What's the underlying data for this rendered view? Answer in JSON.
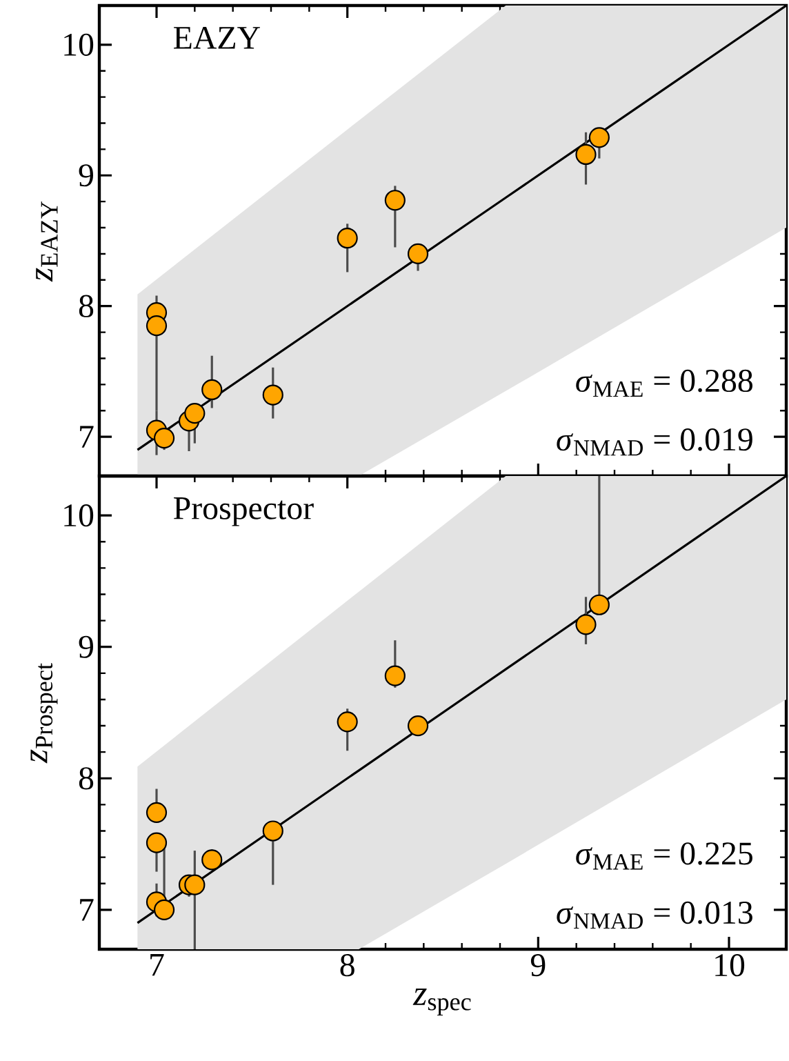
{
  "chart_data": [
    {
      "type": "scatter",
      "title": "EAZY",
      "ylabel": "*z*$_{EAZY}$",
      "xlim": [
        6.7,
        10.3
      ],
      "ylim": [
        6.7,
        10.3
      ],
      "xticks": [
        7,
        8,
        9,
        10
      ],
      "yticks": [
        7,
        8,
        9,
        10
      ],
      "tick_labels": "y",
      "annotations": [
        "*σ*$_{MAE}$ = 0.288",
        "*σ*$_{NMAD}$ = 0.019"
      ],
      "series": [
        {
          "type": "line",
          "color": "#000000",
          "x": [
            6.9,
            8.06,
            8.83,
            10.3
          ],
          "values": [
            6.9,
            8.06,
            8.83,
            10.3
          ],
          "lower": [
            6.7,
            6.7,
            7.35,
            8.6
          ],
          "upper": [
            8.09,
            9.42,
            10.3,
            10.3
          ]
        },
        {
          "marker": "circle",
          "color": "#ffa500",
          "x": [
            7.0,
            7.0,
            7.0,
            7.04,
            7.17,
            7.2,
            7.29,
            7.61,
            8.0,
            8.25,
            8.37,
            9.25,
            9.32
          ],
          "values": [
            7.95,
            7.85,
            7.05,
            6.99,
            7.12,
            7.18,
            7.36,
            7.32,
            8.52,
            8.81,
            8.4,
            9.16,
            9.29
          ],
          "errors": [
            [
              7.95,
              8.08
            ],
            [
              7.2,
              7.85
            ],
            [
              6.86,
              7.2
            ],
            [
              6.9,
              7.05
            ],
            [
              6.89,
              7.2
            ],
            [
              6.95,
              7.25
            ],
            [
              7.22,
              7.62
            ],
            [
              7.14,
              7.53
            ],
            [
              8.26,
              8.63
            ],
            [
              8.45,
              8.92
            ],
            [
              8.27,
              8.47
            ],
            [
              8.93,
              9.33
            ],
            [
              9.13,
              9.33
            ]
          ]
        }
      ]
    },
    {
      "type": "scatter",
      "title": "Prospector",
      "xlabel": "*z*$_{spec}$",
      "ylabel": "*z*$_{Prospect}$",
      "xlim": [
        6.7,
        10.3
      ],
      "ylim": [
        6.7,
        10.3
      ],
      "xticks": [
        7,
        8,
        9,
        10
      ],
      "yticks": [
        7,
        8,
        9,
        10
      ],
      "annotations": [
        "*σ*$_{MAE}$ = 0.225",
        "*σ*$_{NMAD}$ = 0.013"
      ],
      "series": [
        {
          "type": "line",
          "color": "#000000",
          "x": [
            6.9,
            8.06,
            8.83,
            10.3
          ],
          "values": [
            6.9,
            8.06,
            8.83,
            10.3
          ],
          "lower": [
            6.7,
            6.7,
            7.35,
            8.6
          ],
          "upper": [
            8.09,
            9.42,
            10.3,
            10.3
          ]
        },
        {
          "marker": "circle",
          "color": "#ffa500",
          "x": [
            7.0,
            7.0,
            7.0,
            7.04,
            7.17,
            7.2,
            7.29,
            7.61,
            8.0,
            8.25,
            8.37,
            9.25,
            9.32
          ],
          "values": [
            7.74,
            7.51,
            7.06,
            7.0,
            7.19,
            7.19,
            7.38,
            7.6,
            8.43,
            8.78,
            8.4,
            9.17,
            9.32
          ],
          "errors": [
            [
              7.74,
              7.92
            ],
            [
              7.29,
              7.51
            ],
            [
              6.95,
              7.2
            ],
            [
              6.95,
              7.47
            ],
            [
              7.1,
              7.25
            ],
            [
              6.7,
              7.45
            ],
            [
              7.33,
              7.46
            ],
            [
              7.19,
              7.65
            ],
            [
              8.21,
              8.53
            ],
            [
              8.69,
              9.05
            ],
            [
              8.33,
              8.45
            ],
            [
              9.02,
              9.38
            ],
            [
              9.27,
              10.3
            ]
          ]
        }
      ]
    }
  ]
}
